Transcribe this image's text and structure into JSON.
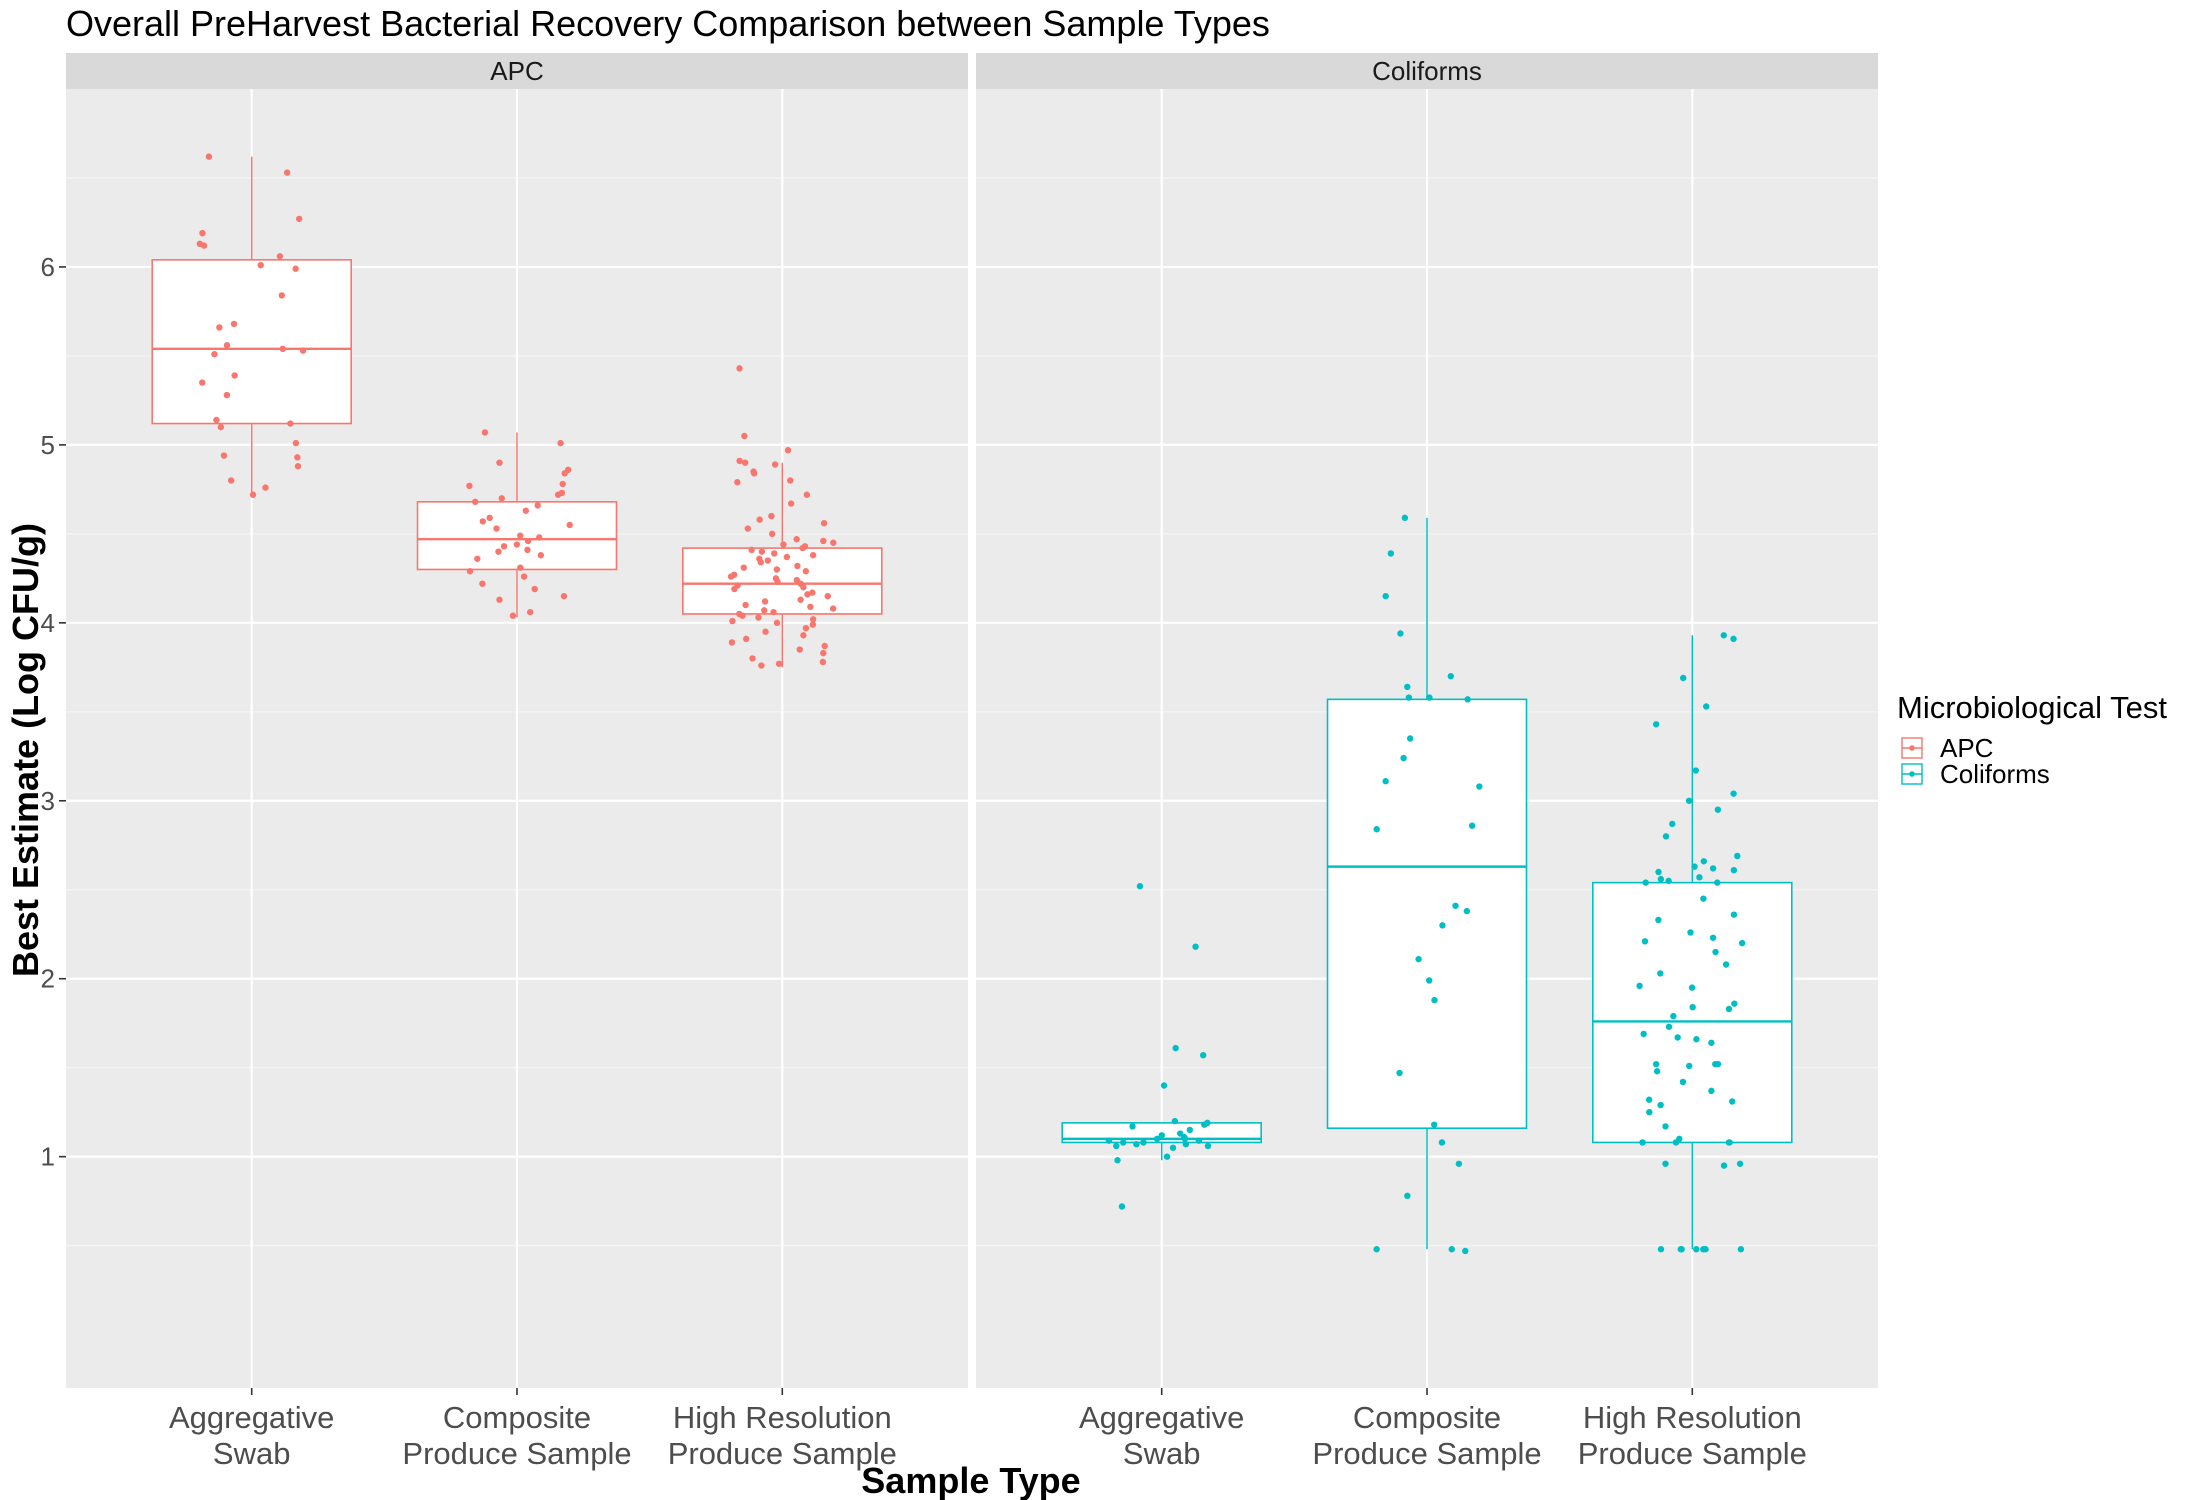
{
  "chart_data": {
    "type": "box",
    "title": "Overall PreHarvest Bacterial Recovery Comparison between Sample Types",
    "xlabel": "Sample Type",
    "ylabel": "Best Estimate (Log CFU/g)",
    "ylim": [
      -0.3,
      7.0
    ],
    "yticks": [
      1,
      2,
      3,
      4,
      5,
      6
    ],
    "grid": true,
    "categories": [
      "Aggregative\nSwab",
      "Composite\nProduce Sample",
      "High Resolution\nProduce Sample"
    ],
    "legend": {
      "title": "Microbiological Test",
      "position": "right",
      "entries": [
        {
          "label": "APC",
          "color": "#F8766D"
        },
        {
          "label": "Coliforms",
          "color": "#00BFC4"
        }
      ]
    },
    "facets": [
      {
        "label": "APC",
        "color": "#F8766D",
        "boxes": [
          {
            "q1": 5.12,
            "median": 5.54,
            "q3": 6.04,
            "whisker_low": 4.72,
            "whisker_high": 6.62,
            "points": [
              6.62,
              6.53,
              6.27,
              6.19,
              6.13,
              6.12,
              6.06,
              6.01,
              5.99,
              5.84,
              5.68,
              5.66,
              5.56,
              5.54,
              5.53,
              5.51,
              5.39,
              5.35,
              5.28,
              5.14,
              5.12,
              5.1,
              5.01,
              4.94,
              4.93,
              4.88,
              4.8,
              4.76,
              4.72
            ]
          },
          {
            "q1": 4.3,
            "median": 4.47,
            "q3": 4.68,
            "whisker_low": 4.03,
            "whisker_high": 5.07,
            "points": [
              5.07,
              5.01,
              4.9,
              4.86,
              4.84,
              4.78,
              4.77,
              4.73,
              4.72,
              4.7,
              4.68,
              4.66,
              4.63,
              4.59,
              4.57,
              4.55,
              4.53,
              4.49,
              4.48,
              4.46,
              4.44,
              4.43,
              4.41,
              4.4,
              4.38,
              4.36,
              4.31,
              4.29,
              4.26,
              4.22,
              4.19,
              4.15,
              4.13,
              4.06,
              4.04
            ]
          },
          {
            "q1": 4.05,
            "median": 4.22,
            "q3": 4.42,
            "whisker_low": 3.75,
            "whisker_high": 4.9,
            "points": [
              5.43,
              5.05,
              4.97,
              4.91,
              4.9,
              4.89,
              4.85,
              4.84,
              4.8,
              4.79,
              4.72,
              4.67,
              4.6,
              4.58,
              4.56,
              4.53,
              4.5,
              4.47,
              4.46,
              4.45,
              4.44,
              4.43,
              4.42,
              4.41,
              4.4,
              4.39,
              4.38,
              4.37,
              4.36,
              4.35,
              4.34,
              4.32,
              4.31,
              4.3,
              4.29,
              4.27,
              4.26,
              4.25,
              4.24,
              4.23,
              4.22,
              4.21,
              4.2,
              4.19,
              4.17,
              4.16,
              4.15,
              4.13,
              4.12,
              4.1,
              4.09,
              4.08,
              4.07,
              4.06,
              4.05,
              4.04,
              4.03,
              4.02,
              4.01,
              4.0,
              3.99,
              3.97,
              3.95,
              3.93,
              3.91,
              3.89,
              3.87,
              3.85,
              3.83,
              3.8,
              3.78,
              3.77,
              3.76
            ]
          }
        ]
      },
      {
        "label": "Coliforms",
        "color": "#00BFC4",
        "boxes": [
          {
            "q1": 1.08,
            "median": 1.1,
            "q3": 1.19,
            "whisker_low": 0.98,
            "whisker_high": 1.19,
            "points": [
              2.52,
              2.18,
              1.61,
              1.57,
              1.4,
              1.2,
              1.19,
              1.18,
              1.17,
              1.15,
              1.13,
              1.12,
              1.11,
              1.1,
              1.1,
              1.09,
              1.09,
              1.08,
              1.08,
              1.07,
              1.07,
              1.06,
              1.06,
              1.05,
              1.0,
              0.98,
              0.72
            ]
          },
          {
            "q1": 1.16,
            "median": 2.63,
            "q3": 3.57,
            "whisker_low": 0.48,
            "whisker_high": 4.59,
            "points": [
              4.59,
              4.39,
              4.15,
              3.94,
              3.7,
              3.64,
              3.58,
              3.58,
              3.57,
              3.35,
              3.24,
              3.11,
              3.08,
              2.86,
              2.84,
              2.41,
              2.38,
              2.3,
              2.11,
              1.99,
              1.88,
              1.47,
              1.18,
              1.08,
              0.96,
              0.78,
              0.48,
              0.48,
              0.47
            ]
          },
          {
            "q1": 1.08,
            "median": 1.76,
            "q3": 2.54,
            "whisker_low": 0.48,
            "whisker_high": 3.93,
            "points": [
              3.93,
              3.91,
              3.69,
              3.53,
              3.43,
              3.17,
              3.04,
              3.0,
              2.95,
              2.87,
              2.8,
              2.69,
              2.66,
              2.63,
              2.62,
              2.61,
              2.6,
              2.57,
              2.56,
              2.55,
              2.54,
              2.54,
              2.45,
              2.36,
              2.33,
              2.26,
              2.23,
              2.21,
              2.2,
              2.15,
              2.08,
              2.03,
              1.96,
              1.95,
              1.86,
              1.84,
              1.83,
              1.79,
              1.73,
              1.69,
              1.67,
              1.66,
              1.64,
              1.52,
              1.52,
              1.52,
              1.51,
              1.48,
              1.42,
              1.37,
              1.32,
              1.31,
              1.29,
              1.25,
              1.17,
              1.1,
              1.08,
              1.08,
              1.08,
              1.08,
              0.96,
              0.96,
              0.95,
              0.48,
              0.48,
              0.48,
              0.48,
              0.48,
              0.48,
              0.48
            ]
          }
        ]
      }
    ]
  }
}
